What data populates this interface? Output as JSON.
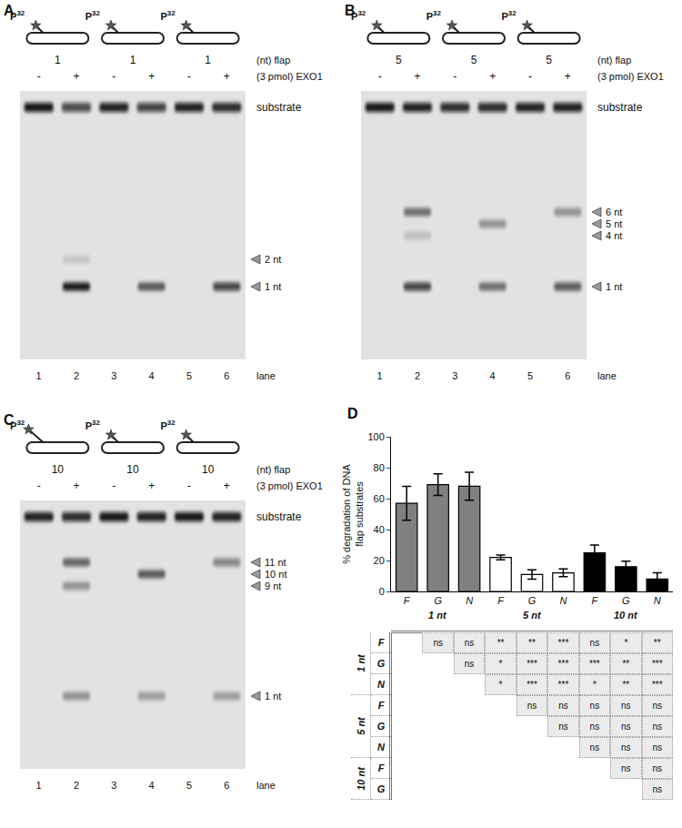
{
  "gels": [
    {
      "panel": "A",
      "tag": {
        "text": "P",
        "superscript": "32"
      },
      "flaps": [
        1,
        1,
        1
      ],
      "flap_label": "(nt) flap",
      "treatments": [
        "-",
        "+",
        "-",
        "+",
        "-",
        "+"
      ],
      "enzyme_label": "(3 pmol) EXO1",
      "lanes": [
        1,
        2,
        3,
        4,
        5,
        6
      ],
      "lane_label": "lane",
      "substrate_label": "substrate",
      "substrate_intensity": [
        0.95,
        0.7,
        0.9,
        0.75,
        0.9,
        0.85
      ],
      "markers": [
        {
          "value": 2,
          "label": "2 nt"
        },
        {
          "value": 1,
          "label": "1 nt"
        }
      ],
      "bands": [
        {
          "lane": 2,
          "size": 2,
          "intensity": 0.12
        },
        {
          "lane": 2,
          "size": 1,
          "intensity": 0.95
        },
        {
          "lane": 4,
          "size": 1,
          "intensity": 0.6
        },
        {
          "lane": 6,
          "size": 1,
          "intensity": 0.75
        }
      ]
    },
    {
      "panel": "B",
      "tag": {
        "text": "P",
        "superscript": "32"
      },
      "flaps": [
        5,
        5,
        5
      ],
      "flap_label": "(nt) flap",
      "treatments": [
        "-",
        "+",
        "-",
        "+",
        "-",
        "+"
      ],
      "enzyme_label": "(3 pmol) EXO1",
      "lanes": [
        1,
        2,
        3,
        4,
        5,
        6
      ],
      "lane_label": "lane",
      "substrate_label": "substrate",
      "substrate_intensity": [
        0.95,
        0.9,
        0.85,
        0.85,
        0.9,
        0.9
      ],
      "markers": [
        {
          "value": 6,
          "label": "6 nt"
        },
        {
          "value": 5,
          "label": "5 nt"
        },
        {
          "value": 4,
          "label": "4 nt"
        },
        {
          "value": 1,
          "label": "1 nt"
        }
      ],
      "bands": [
        {
          "lane": 2,
          "size": 6,
          "intensity": 0.5
        },
        {
          "lane": 2,
          "size": 4,
          "intensity": 0.15
        },
        {
          "lane": 2,
          "size": 1,
          "intensity": 0.75
        },
        {
          "lane": 4,
          "size": 5,
          "intensity": 0.35
        },
        {
          "lane": 4,
          "size": 1,
          "intensity": 0.5
        },
        {
          "lane": 6,
          "size": 6,
          "intensity": 0.35
        },
        {
          "lane": 6,
          "size": 1,
          "intensity": 0.65
        }
      ]
    },
    {
      "panel": "C",
      "tag": {
        "text": "P",
        "superscript": "32"
      },
      "flaps": [
        10,
        10,
        10
      ],
      "flap_label": "(nt) flap",
      "treatments": [
        "-",
        "+",
        "-",
        "+",
        "-",
        "+"
      ],
      "enzyme_label": "(3 pmol) EXO1",
      "lanes": [
        1,
        2,
        3,
        4,
        5,
        6
      ],
      "lane_label": "lane",
      "substrate_label": "substrate",
      "substrate_intensity": [
        0.9,
        0.85,
        0.95,
        0.9,
        0.95,
        0.9
      ],
      "markers": [
        {
          "value": 11,
          "label": "11 nt"
        },
        {
          "value": 10,
          "label": "10 nt"
        },
        {
          "value": 9,
          "label": "9 nt"
        },
        {
          "value": 1,
          "label": "1 nt"
        }
      ],
      "bands": [
        {
          "lane": 2,
          "size": 11,
          "intensity": 0.55
        },
        {
          "lane": 2,
          "size": 9,
          "intensity": 0.35
        },
        {
          "lane": 2,
          "size": 1,
          "intensity": 0.35
        },
        {
          "lane": 4,
          "size": 10,
          "intensity": 0.6
        },
        {
          "lane": 4,
          "size": 1,
          "intensity": 0.3
        },
        {
          "lane": 6,
          "size": 11,
          "intensity": 0.4
        },
        {
          "lane": 6,
          "size": 1,
          "intensity": 0.3
        }
      ]
    }
  ],
  "chart_data": {
    "panel": "D",
    "type": "bar",
    "y_label": [
      "% degradation of DNA",
      "flap substrates"
    ],
    "categories": [
      "F",
      "G",
      "N",
      "F",
      "G",
      "N",
      "F",
      "G",
      "N"
    ],
    "category_groups": [
      "1 nt",
      "1 nt",
      "1 nt",
      "5 nt",
      "5 nt",
      "5 nt",
      "10 nt",
      "10 nt",
      "10 nt"
    ],
    "values": [
      57,
      69,
      68,
      22,
      11,
      12,
      25,
      16,
      8
    ],
    "errors": [
      11,
      7,
      9,
      1.5,
      3,
      2.5,
      5,
      3.5,
      4
    ],
    "colors": [
      "#808080",
      "#808080",
      "#808080",
      "#ffffff",
      "#ffffff",
      "#ffffff",
      "#000000",
      "#000000",
      "#000000"
    ],
    "ylim": [
      0,
      100
    ],
    "yticks": [
      0,
      20,
      40,
      60,
      80,
      100
    ],
    "grid": false
  },
  "significance_table": {
    "rows": [
      {
        "group": "1 nt",
        "label": "F",
        "cells": [
          null,
          "ns",
          "ns",
          "**",
          "**",
          "***",
          "ns",
          "*",
          "**"
        ]
      },
      {
        "group": "1 nt",
        "label": "G",
        "cells": [
          null,
          null,
          "ns",
          "*",
          "***",
          "***",
          "***",
          "**",
          "***"
        ]
      },
      {
        "group": "1 nt",
        "label": "N",
        "cells": [
          null,
          null,
          null,
          "*",
          "***",
          "***",
          "*",
          "**",
          "***"
        ]
      },
      {
        "group": "5 nt",
        "label": "F",
        "cells": [
          null,
          null,
          null,
          null,
          "ns",
          "ns",
          "ns",
          "ns",
          "ns"
        ]
      },
      {
        "group": "5 nt",
        "label": "G",
        "cells": [
          null,
          null,
          null,
          null,
          null,
          "ns",
          "ns",
          "ns",
          "ns"
        ]
      },
      {
        "group": "5 nt",
        "label": "N",
        "cells": [
          null,
          null,
          null,
          null,
          null,
          null,
          "ns",
          "ns",
          "ns"
        ]
      },
      {
        "group": "10 nt",
        "label": "F",
        "cells": [
          null,
          null,
          null,
          null,
          null,
          null,
          null,
          "ns",
          "ns"
        ]
      },
      {
        "group": "10 nt",
        "label": "G",
        "cells": [
          null,
          null,
          null,
          null,
          null,
          null,
          null,
          null,
          "ns"
        ]
      }
    ]
  }
}
